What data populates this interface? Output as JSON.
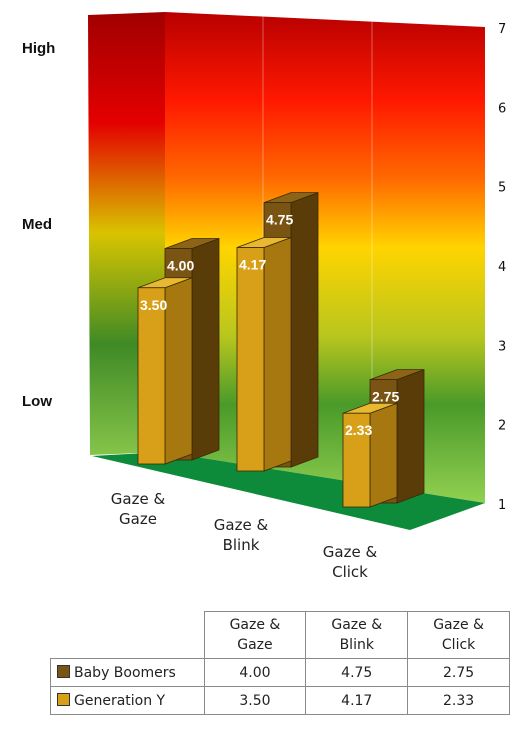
{
  "levels": {
    "high": "High",
    "med": "Med",
    "low": "Low"
  },
  "chart_data": {
    "type": "bar",
    "categories": [
      "Gaze &\nGaze",
      "Gaze &\nBlink",
      "Gaze &\nClick"
    ],
    "series": [
      {
        "name": "Baby Boomers",
        "values": [
          4.0,
          4.75,
          2.75
        ],
        "color": "#7a5412",
        "value_labels": [
          "4.00",
          "4.75",
          "2.75"
        ]
      },
      {
        "name": "Generation Y",
        "values": [
          3.5,
          4.17,
          2.33
        ],
        "color": "#d8a018",
        "value_labels": [
          "3.50",
          "4.17",
          "2.33"
        ]
      }
    ],
    "ylim": [
      1,
      7
    ],
    "yticks": [
      "1",
      "2",
      "3",
      "4",
      "5",
      "6",
      "7"
    ],
    "floor_color": "#0d8a3a",
    "background_gradient": [
      "#c00000",
      "#ff2a00",
      "#ffd000",
      "#3f8f2a",
      "#8fcf50"
    ]
  },
  "table": {
    "headers": [
      "Gaze &\nGaze",
      "Gaze &\nBlink",
      "Gaze &\nClick"
    ],
    "rows": [
      {
        "label": "Baby Boomers",
        "color": "#7a5412",
        "cells": [
          "4.00",
          "4.75",
          "2.75"
        ]
      },
      {
        "label": "Generation Y",
        "color": "#d8a018",
        "cells": [
          "3.50",
          "4.17",
          "2.33"
        ]
      }
    ]
  }
}
